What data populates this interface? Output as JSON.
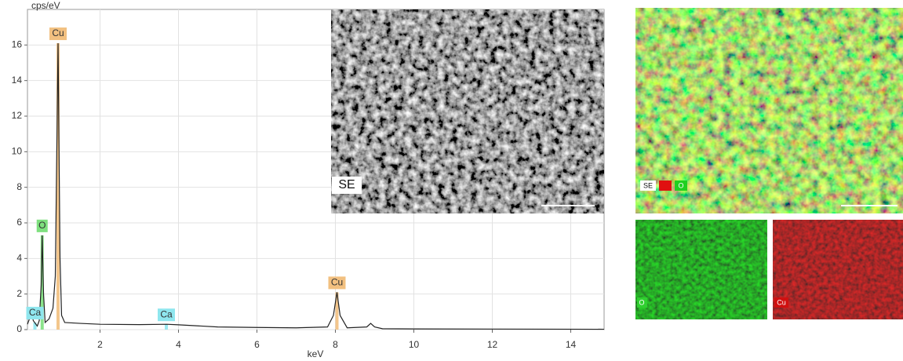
{
  "chart_data": {
    "type": "line",
    "x_label": "keV",
    "y_label": "cps/eV",
    "x": [
      0.15,
      0.25,
      0.3,
      0.4,
      0.45,
      0.5,
      0.525,
      0.56,
      0.6,
      0.7,
      0.8,
      0.86,
      0.93,
      0.98,
      1.02,
      1.1,
      1.5,
      2,
      3,
      3.7,
      4,
      5,
      6,
      7,
      7.8,
      7.95,
      8.04,
      8.12,
      8.3,
      8.8,
      8.9,
      9,
      9.2,
      10,
      12,
      14.85
    ],
    "values": [
      0.3,
      0.9,
      0.5,
      0.2,
      0.5,
      2.5,
      5.3,
      2,
      0.4,
      0.6,
      1.2,
      3,
      16.1,
      4,
      0.8,
      0.4,
      0.35,
      0.3,
      0.28,
      0.3,
      0.27,
      0.15,
      0.12,
      0.1,
      0.15,
      0.8,
      2.1,
      0.8,
      0.1,
      0.15,
      0.35,
      0.15,
      0.05,
      0.04,
      0.03,
      0.02
    ],
    "color": "#222222",
    "peaks": [
      {
        "label": "Cu",
        "x": 0.93,
        "y": 16.1,
        "color": "#f2c080"
      },
      {
        "label": "O",
        "x": 0.525,
        "y": 5.3,
        "color": "#7ee07e"
      },
      {
        "label": "Cu",
        "x": 8.04,
        "y": 2.1,
        "color": "#f2c080"
      },
      {
        "label": "Ca",
        "x": 3.69,
        "y": 0.3,
        "color": "#8fe6ee"
      },
      {
        "label": "Ca",
        "x": 0.34,
        "y": 0.4,
        "color": "#8fe6ee"
      }
    ],
    "xlim": [
      0.15,
      14.85
    ],
    "ylim": [
      0,
      18
    ],
    "xticks": [
      2,
      4,
      6,
      8,
      10,
      12,
      14
    ],
    "yticks": [
      0,
      2,
      4,
      6,
      8,
      10,
      12,
      14,
      16
    ],
    "grid": true
  },
  "sem_image": {
    "label": "SE"
  },
  "overlay_map": {
    "labels": [
      "SE",
      "O"
    ]
  },
  "element_maps": [
    {
      "label": "O"
    },
    {
      "label": "Cu"
    }
  ]
}
